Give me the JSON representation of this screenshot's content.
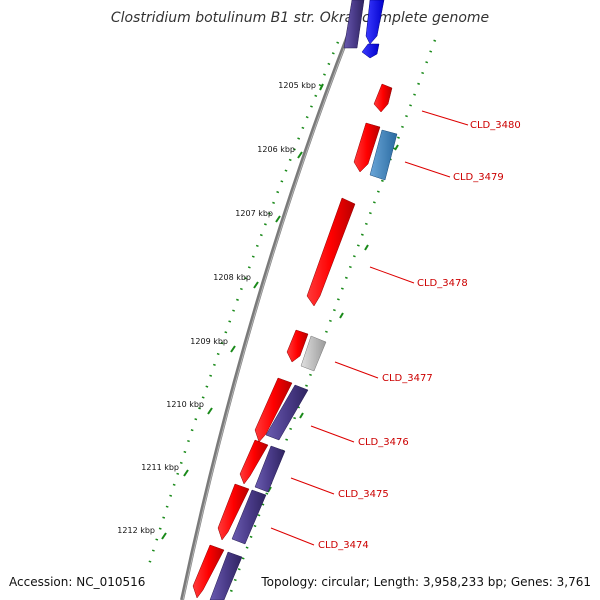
{
  "title": "Clostridium botulinum B1 str. Okra, complete genome",
  "accession": "Accession: NC_010516",
  "topology": "Topology: circular; Length: 3,958,233 bp; Genes: 3,761",
  "kbp_labels": [
    "1205 kbp",
    "1206 kbp",
    "1207 kbp",
    "1208 kbp",
    "1209 kbp",
    "1210 kbp",
    "1211 kbp",
    "1212 kbp"
  ],
  "gene_labels": [
    "CLD_3480",
    "CLD_3479",
    "CLD_3478",
    "CLD_3477",
    "CLD_3476",
    "CLD_3475",
    "CLD_3474"
  ],
  "colors": {
    "backbone": "#808080",
    "forward_gene": "#ff0000",
    "reverse_gene": "#4b3c8a",
    "highlight_gene": "#0000ff",
    "steelblue_gene": "#3d80b8",
    "pseudo_gene": "#c0c0c0",
    "ticks": "#1a8a1a",
    "label_red": "#cc0000"
  }
}
